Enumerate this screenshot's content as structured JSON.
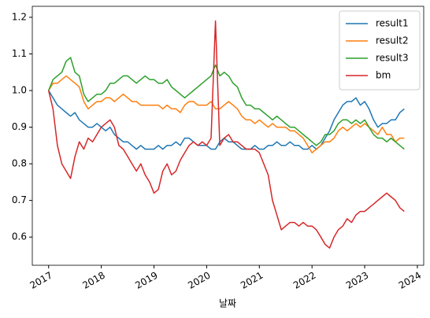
{
  "chart_data": {
    "type": "line",
    "xlabel": "날짜",
    "x": [
      2017,
      2017.083,
      2017.167,
      2017.25,
      2017.333,
      2017.417,
      2017.5,
      2017.583,
      2017.667,
      2017.75,
      2017.833,
      2017.917,
      2018,
      2018.083,
      2018.167,
      2018.25,
      2018.333,
      2018.417,
      2018.5,
      2018.583,
      2018.667,
      2018.75,
      2018.833,
      2018.917,
      2019,
      2019.083,
      2019.167,
      2019.25,
      2019.333,
      2019.417,
      2019.5,
      2019.583,
      2019.667,
      2019.75,
      2019.833,
      2019.917,
      2020,
      2020.083,
      2020.167,
      2020.25,
      2020.333,
      2020.417,
      2020.5,
      2020.583,
      2020.667,
      2020.75,
      2020.833,
      2020.917,
      2021,
      2021.083,
      2021.167,
      2021.25,
      2021.333,
      2021.417,
      2021.5,
      2021.583,
      2021.667,
      2021.75,
      2021.833,
      2021.917,
      2022,
      2022.083,
      2022.167,
      2022.25,
      2022.333,
      2022.417,
      2022.5,
      2022.583,
      2022.667,
      2022.75,
      2022.833,
      2022.917,
      2023,
      2023.083,
      2023.167,
      2023.25,
      2023.333,
      2023.417,
      2023.5,
      2023.583,
      2023.667,
      2023.75
    ],
    "series": [
      {
        "name": "result1",
        "color": "#1f77b4",
        "values": [
          1.0,
          0.98,
          0.96,
          0.95,
          0.94,
          0.93,
          0.94,
          0.92,
          0.91,
          0.9,
          0.9,
          0.91,
          0.9,
          0.89,
          0.9,
          0.88,
          0.87,
          0.86,
          0.86,
          0.85,
          0.84,
          0.85,
          0.84,
          0.84,
          0.84,
          0.85,
          0.84,
          0.85,
          0.85,
          0.86,
          0.85,
          0.87,
          0.87,
          0.86,
          0.85,
          0.85,
          0.85,
          0.84,
          0.84,
          0.86,
          0.87,
          0.86,
          0.86,
          0.85,
          0.84,
          0.84,
          0.84,
          0.85,
          0.84,
          0.84,
          0.85,
          0.85,
          0.86,
          0.85,
          0.85,
          0.86,
          0.85,
          0.85,
          0.84,
          0.84,
          0.85,
          0.84,
          0.85,
          0.87,
          0.89,
          0.92,
          0.94,
          0.96,
          0.97,
          0.97,
          0.98,
          0.96,
          0.97,
          0.95,
          0.92,
          0.9,
          0.91,
          0.91,
          0.92,
          0.92,
          0.94,
          0.95
        ]
      },
      {
        "name": "result2",
        "color": "#ff7f0e",
        "values": [
          1.0,
          1.02,
          1.02,
          1.03,
          1.04,
          1.03,
          1.02,
          1.01,
          0.97,
          0.95,
          0.96,
          0.97,
          0.97,
          0.98,
          0.98,
          0.97,
          0.98,
          0.99,
          0.98,
          0.97,
          0.97,
          0.96,
          0.96,
          0.96,
          0.96,
          0.96,
          0.95,
          0.96,
          0.95,
          0.95,
          0.94,
          0.96,
          0.97,
          0.97,
          0.96,
          0.96,
          0.96,
          0.97,
          0.95,
          0.95,
          0.96,
          0.97,
          0.96,
          0.95,
          0.93,
          0.92,
          0.92,
          0.91,
          0.92,
          0.91,
          0.9,
          0.91,
          0.9,
          0.9,
          0.9,
          0.89,
          0.89,
          0.88,
          0.87,
          0.85,
          0.83,
          0.84,
          0.85,
          0.86,
          0.86,
          0.87,
          0.89,
          0.9,
          0.89,
          0.9,
          0.91,
          0.9,
          0.91,
          0.9,
          0.89,
          0.88,
          0.9,
          0.88,
          0.88,
          0.86,
          0.87,
          0.87
        ]
      },
      {
        "name": "result3",
        "color": "#2ca02c",
        "values": [
          1.0,
          1.03,
          1.04,
          1.05,
          1.08,
          1.09,
          1.05,
          1.04,
          0.99,
          0.97,
          0.98,
          0.99,
          0.99,
          1.0,
          1.02,
          1.02,
          1.03,
          1.04,
          1.04,
          1.03,
          1.02,
          1.03,
          1.04,
          1.03,
          1.03,
          1.02,
          1.02,
          1.03,
          1.01,
          1.0,
          0.99,
          0.98,
          0.99,
          1.0,
          1.01,
          1.02,
          1.03,
          1.04,
          1.07,
          1.04,
          1.05,
          1.04,
          1.02,
          1.01,
          0.98,
          0.96,
          0.96,
          0.95,
          0.95,
          0.94,
          0.93,
          0.92,
          0.93,
          0.92,
          0.91,
          0.9,
          0.9,
          0.89,
          0.88,
          0.87,
          0.86,
          0.85,
          0.86,
          0.88,
          0.88,
          0.89,
          0.91,
          0.92,
          0.92,
          0.91,
          0.92,
          0.91,
          0.92,
          0.9,
          0.88,
          0.87,
          0.87,
          0.86,
          0.87,
          0.86,
          0.85,
          0.84
        ]
      },
      {
        "name": "bm",
        "color": "#d62728",
        "values": [
          1.0,
          0.95,
          0.85,
          0.8,
          0.78,
          0.76,
          0.82,
          0.86,
          0.84,
          0.87,
          0.86,
          0.88,
          0.9,
          0.91,
          0.92,
          0.9,
          0.85,
          0.84,
          0.82,
          0.8,
          0.78,
          0.8,
          0.77,
          0.75,
          0.72,
          0.73,
          0.78,
          0.8,
          0.77,
          0.78,
          0.81,
          0.83,
          0.85,
          0.86,
          0.85,
          0.86,
          0.85,
          0.87,
          1.19,
          0.85,
          0.87,
          0.88,
          0.86,
          0.86,
          0.85,
          0.84,
          0.84,
          0.84,
          0.83,
          0.8,
          0.77,
          0.7,
          0.66,
          0.62,
          0.63,
          0.64,
          0.64,
          0.63,
          0.64,
          0.63,
          0.63,
          0.62,
          0.6,
          0.58,
          0.57,
          0.6,
          0.62,
          0.63,
          0.65,
          0.64,
          0.66,
          0.67,
          0.67,
          0.68,
          0.69,
          0.7,
          0.71,
          0.72,
          0.71,
          0.7,
          0.68,
          0.67
        ]
      }
    ],
    "xlim": [
      2016.69,
      2024.12
    ],
    "xticks": [
      2017,
      2018,
      2019,
      2020,
      2021,
      2022,
      2023,
      2024
    ],
    "ylim": [
      0.523,
      1.23
    ],
    "yticks": [
      0.6,
      0.7,
      0.8,
      0.9,
      {
        "value": 1,
        "label": "1.0"
      },
      1.1,
      1.2
    ],
    "legend": "upper right"
  }
}
